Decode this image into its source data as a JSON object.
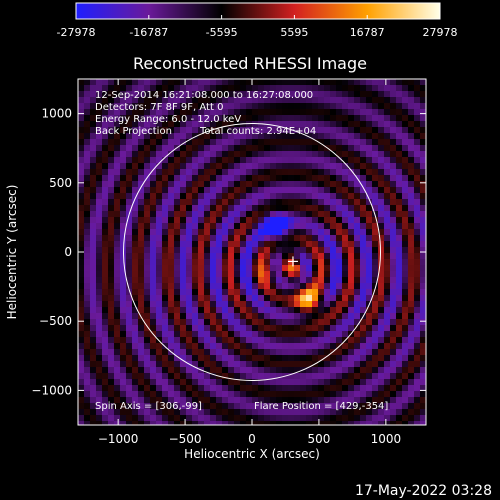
{
  "colors": {
    "background": "#000000",
    "foreground": "#ffffff",
    "colorbar_stops": [
      "#1f1fff",
      "#6a1a9a",
      "#000000",
      "#d22020",
      "#ffa000",
      "#ffffe8"
    ]
  },
  "colorbar": {
    "ticks": [
      "-27978",
      "-16787",
      "-5595",
      "5595",
      "16787",
      "27978"
    ]
  },
  "chart_data": {
    "type": "heatmap",
    "title": "Reconstructed RHESSI Image",
    "xlabel": "Heliocentric X (arcsec)",
    "ylabel": "Heliocentric Y (arcsec)",
    "xlim": [
      -1300,
      1300
    ],
    "ylim": [
      -1250,
      1250
    ],
    "xticks": [
      -1000,
      -500,
      0,
      500,
      1000
    ],
    "yticks": [
      1000,
      500,
      0,
      -500,
      -1000
    ],
    "xtick_labels": [
      "−1000",
      "−500",
      "0",
      "500",
      "1000"
    ],
    "ytick_labels": [
      "1000",
      "500",
      "0",
      "−500",
      "−1000"
    ],
    "value_range": [
      -27978,
      27978
    ],
    "solar_limb_radius": 960,
    "flare_marker": [
      306,
      -68
    ],
    "info_lines": [
      "12-Sep-2014 16:21:08.000 to 16:27:08.000",
      "Detectors: 7F 8F 9F, Att 0",
      "Energy Range: 6.0 - 12.0 keV"
    ],
    "info_method": "Back Projection",
    "info_counts": "Total counts: 2.94E+04",
    "spin_axis": "Spin Axis = [306,-99]",
    "flare_position": "Flare Position = [429,-354]"
  },
  "timestamp": "17-May-2022 03:28"
}
